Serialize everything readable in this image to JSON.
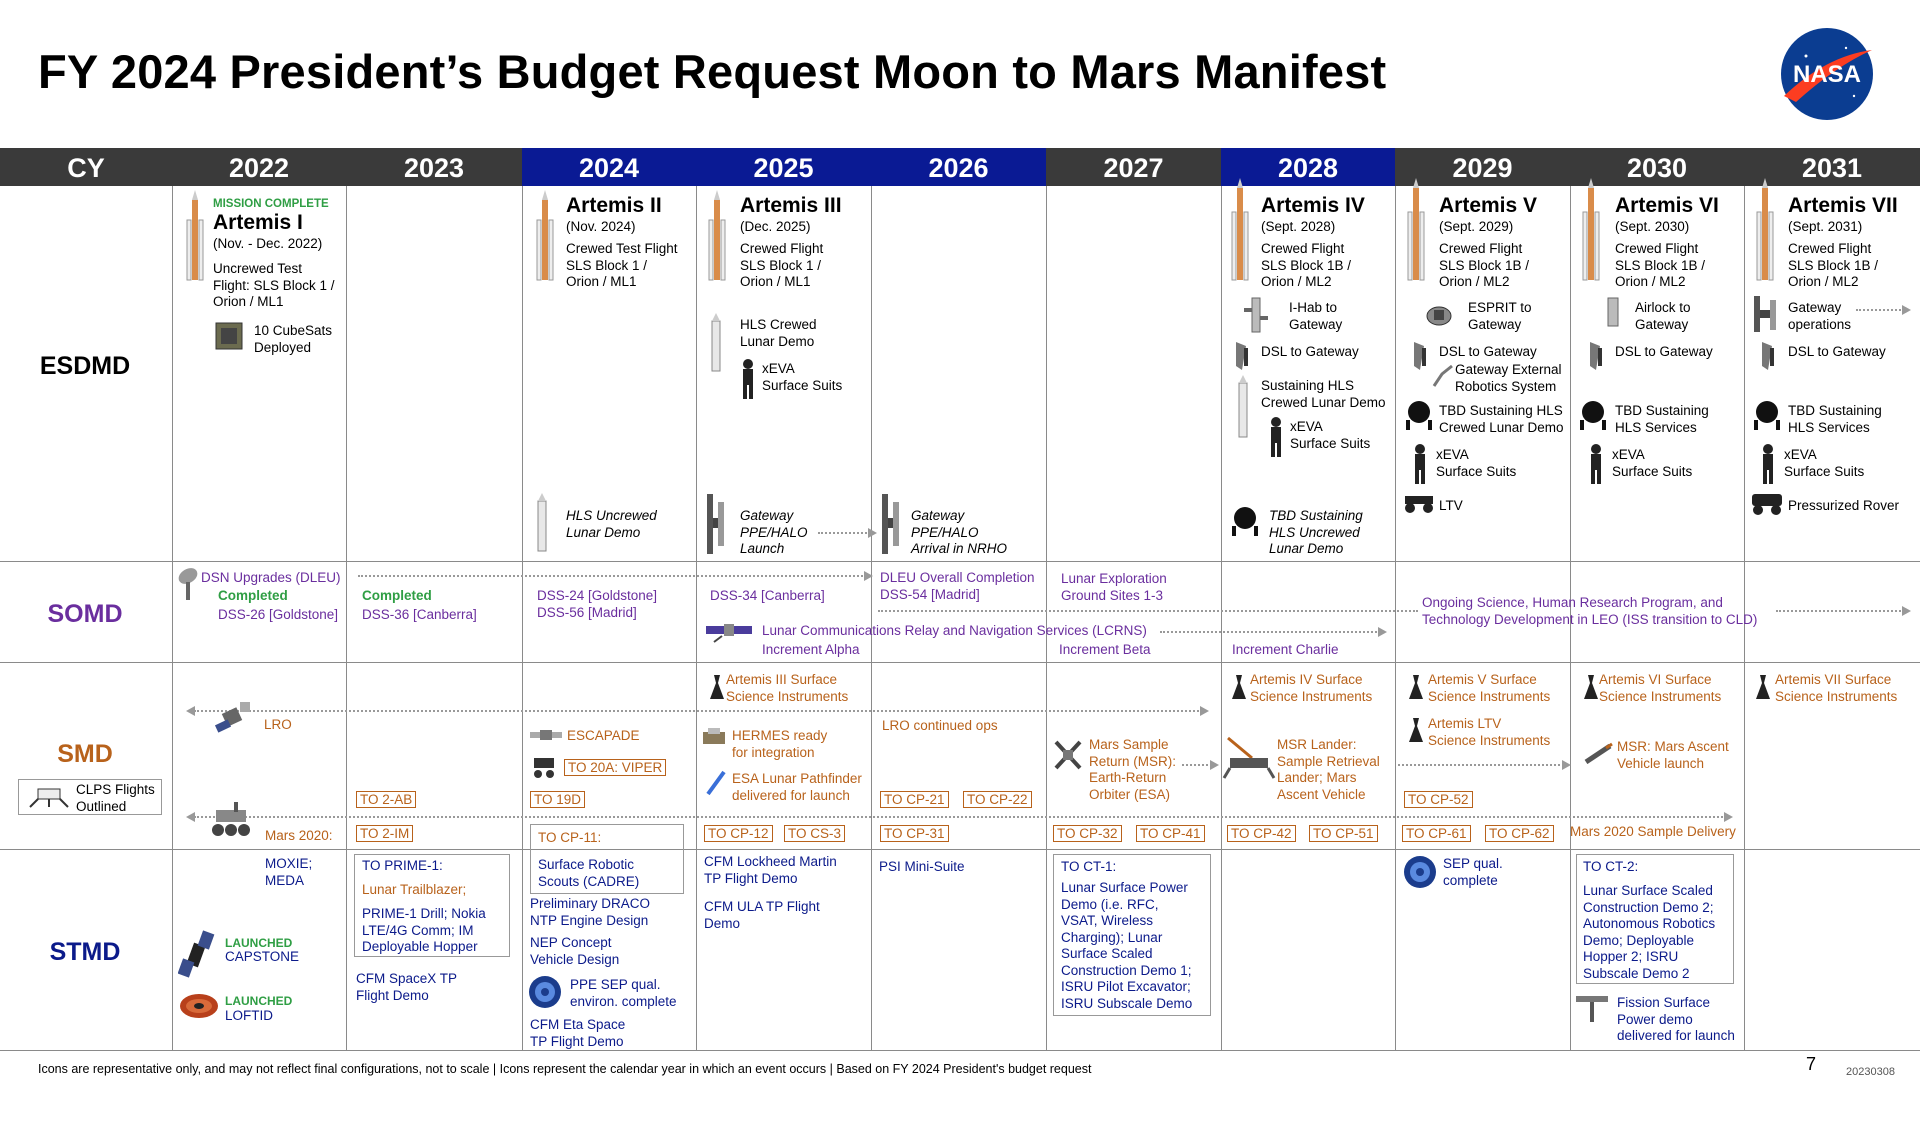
{
  "title": "FY 2024 President’s Budget Request Moon to Mars Manifest",
  "logo": "NASA",
  "header": {
    "cy": "CY",
    "years": [
      "2022",
      "2023",
      "2024",
      "2025",
      "2026",
      "2027",
      "2028",
      "2029",
      "2030",
      "2031"
    ],
    "highlighted_years": [
      "2024",
      "2025",
      "2026",
      "2028"
    ]
  },
  "rows": {
    "esdmd": "ESDMD",
    "somd": "SOMD",
    "smd": "SMD",
    "stmd": "STMD"
  },
  "esdmd": {
    "y2022": {
      "status": "MISSION COMPLETE",
      "name": "Artemis I",
      "date": "(Nov. - Dec. 2022)",
      "desc": "Uncrewed Test\nFlight: SLS Block 1 /\nOrion / ML1",
      "cubesats": "10 CubeSats\nDeployed"
    },
    "y2024": {
      "name": "Artemis II",
      "date": "(Nov. 2024)",
      "desc": "Crewed Test Flight\nSLS Block 1 /\nOrion / ML1",
      "hls": "HLS Uncrewed\nLunar Demo"
    },
    "y2025": {
      "name": "Artemis III",
      "date": "(Dec. 2025)",
      "desc": "Crewed Flight\nSLS Block 1 /\nOrion / ML1",
      "hls": "HLS Crewed\nLunar Demo",
      "xeva": "xEVA\nSurface Suits",
      "gateway": "Gateway\nPPE/HALO\nLaunch"
    },
    "y2026": {
      "gateway": "Gateway\nPPE/HALO\nArrival in NRHO"
    },
    "y2028": {
      "name": "Artemis IV",
      "date": "(Sept. 2028)",
      "desc": "Crewed Flight\nSLS Block 1B /\nOrion / ML2",
      "ihab": "I-Hab to\nGateway",
      "dsl": "DSL to Gateway",
      "hls": "Sustaining HLS\nCrewed Lunar Demo",
      "xeva": "xEVA\nSurface Suits",
      "tbd": "TBD Sustaining\nHLS Uncrewed\nLunar Demo"
    },
    "y2029": {
      "name": "Artemis V",
      "date": "(Sept. 2029)",
      "desc": "Crewed Flight\nSLS Block 1B /\nOrion / ML2",
      "esprit": "ESPRIT to\nGateway",
      "dsl": "DSL to Gateway",
      "robotics": "Gateway External\nRobotics System",
      "tbd": "TBD Sustaining HLS\nCrewed Lunar Demo",
      "xeva": "xEVA\nSurface Suits",
      "ltv": "LTV"
    },
    "y2030": {
      "name": "Artemis VI",
      "date": "(Sept. 2030)",
      "desc": "Crewed Flight\nSLS Block 1B /\nOrion / ML2",
      "airlock": "Airlock to\nGateway",
      "dsl": "DSL to Gateway",
      "tbd": "TBD Sustaining\nHLS Services",
      "xeva": "xEVA\nSurface Suits"
    },
    "y2031": {
      "name": "Artemis VII",
      "date": "(Sept. 2031)",
      "desc": "Crewed Flight\nSLS Block 1B /\nOrion / ML2",
      "gateway": "Gateway\noperations",
      "dsl": "DSL to Gateway",
      "tbd": "TBD Sustaining\nHLS Services",
      "xeva": "xEVA\nSurface Suits",
      "rover": "Pressurized Rover"
    }
  },
  "somd": {
    "dsn": "DSN Upgrades (DLEU)",
    "completed1": "Completed",
    "dss26": "DSS-26 [Goldstone]",
    "completed2": "Completed",
    "dss36": "DSS-36 [Canberra]",
    "dss24": "DSS-24 [Goldstone]\nDSS-56 [Madrid]",
    "dss34": "DSS-34 [Canberra]",
    "dleu": "DLEU Overall Completion\nDSS-54 [Madrid]",
    "lunar_sites": "Lunar Exploration\nGround Sites 1-3",
    "ongoing": "Ongoing Science, Human Research Program, and\nTechnology Development in LEO (ISS transition to CLD)",
    "lcrns": "Lunar Communications Relay and Navigation Services (LCRNS)",
    "inc_alpha": "Increment Alpha",
    "inc_beta": "Increment Beta",
    "inc_charlie": "Increment Charlie"
  },
  "smd": {
    "clps": "CLPS Flights\nOutlined",
    "lro": "LRO",
    "mars2020": "Mars 2020:",
    "escapade": "ESCAPADE",
    "a3_instr": "Artemis III Surface\nScience Instruments",
    "hermes": "HERMES ready\nfor integration",
    "esa": "ESA Lunar Pathfinder\ndelivered for launch",
    "lro_ops": "LRO continued ops",
    "msr": "Mars Sample\nReturn (MSR):\nEarth-Return\nOrbiter (ESA)",
    "a4_instr": "Artemis IV Surface\nScience Instruments",
    "msr_lander": "MSR Lander:\nSample Retrieval\nLander; Mars\nAscent Vehicle",
    "a5_instr": "Artemis V Surface\nScience Instruments",
    "ltv_instr": "Artemis LTV\nScience Instruments",
    "a6_instr": "Artemis VI Surface\nScience Instruments",
    "msr_ascent": "MSR: Mars Ascent\nVehicle launch",
    "a7_instr": "Artemis VII Surface\nScience Instruments",
    "mars_delivery": "Mars 2020 Sample Delivery",
    "to": {
      "to2ab": "TO 2-AB",
      "to20a": "TO 20A: VIPER",
      "to19d": "TO 19D",
      "cp21": "TO CP-21",
      "cp22": "TO CP-22",
      "cp52": "TO CP-52",
      "to2im": "TO 2-IM",
      "cp11": "TO CP-11:",
      "cp12": "TO CP-12",
      "cs3": "TO CS-3",
      "cp31": "TO CP-31",
      "cp32": "TO CP-32",
      "cp41": "TO CP-41",
      "cp42": "TO CP-42",
      "cp51": "TO CP-51",
      "cp61": "TO CP-61",
      "cp62": "TO CP-62"
    }
  },
  "stmd": {
    "moxie": "MOXIE;\nMEDA",
    "launched1": "LAUNCHED",
    "capstone": "CAPSTONE",
    "launched2": "LAUNCHED",
    "loftid": "LOFTID",
    "prime_to": "TO PRIME-1:",
    "trailblazer": "Lunar Trailblazer;",
    "prime": "PRIME-1 Drill; Nokia\nLTE/4G Comm; IM\nDeployable Hopper",
    "cfm_spacex": "CFM SpaceX TP\nFlight Demo",
    "cadre": "Surface Robotic\nScouts (CADRE)",
    "draco": "Preliminary DRACO\nNTP Engine Design",
    "nep": "NEP Concept\nVehicle Design",
    "ppe": "PPE SEP qual.\nenviron. complete",
    "cfm_eta": "CFM Eta Space\nTP Flight Demo",
    "cfm_lm": "CFM Lockheed Martin\nTP Flight Demo",
    "cfm_ula": "CFM ULA TP Flight\nDemo",
    "psi": "PSI Mini-Suite",
    "ct1_to": "TO CT-1:",
    "ct1": "Lunar Surface Power\nDemo (i.e. RFC,\nVSAT, Wireless\nCharging); Lunar\nSurface Scaled\nConstruction Demo 1;\nISRU Pilot Excavator;\nISRU Subscale Demo",
    "sep": "SEP qual.\ncomplete",
    "ct2_to": "TO CT-2:",
    "ct2": "Lunar Surface Scaled\nConstruction Demo 2;\nAutonomous Robotics\nDemo; Deployable\nHopper 2; ISRU\nSubscale Demo 2",
    "fission": "Fission Surface\nPower demo\ndelivered for launch"
  },
  "footer": "Icons are representative only, and may not reflect final configurations, not to scale | Icons represent the calendar year in which an event occurs | Based on FY 2024 President's budget request",
  "page_number": "7",
  "date_code": "20230308",
  "colors": {
    "header": "#3a3a3a",
    "highlight": "#0a1a94",
    "somd": "#6a2e9e",
    "smd": "#b8621b",
    "stmd": "#0b1a8a",
    "complete": "#2f9e44"
  }
}
